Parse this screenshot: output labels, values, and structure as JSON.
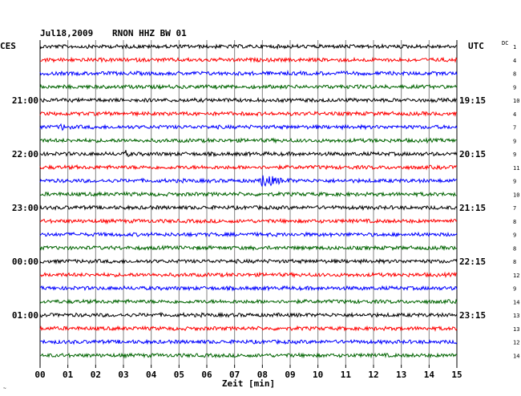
{
  "header": {
    "date": "Jul18,2009",
    "station": "RNON HHZ BW 01",
    "left_tz": "CES",
    "right_tz": "UTC",
    "dc_label": "DC"
  },
  "colors": {
    "trace_cycle": [
      "#000000",
      "#ff0000",
      "#0000ff",
      "#006400"
    ],
    "grid": "#808080",
    "text": "#000000"
  },
  "chart_data": {
    "type": "line",
    "title": "Jul18,2009   RNON HHZ BW 01",
    "xlabel": "Zeit [min]",
    "ylabel": "",
    "xlim": [
      0,
      15
    ],
    "x_ticks": [
      "00",
      "01",
      "02",
      "03",
      "04",
      "05",
      "06",
      "07",
      "08",
      "09",
      "10",
      "11",
      "12",
      "13",
      "14",
      "15"
    ],
    "grid": true,
    "left_time_labels": [
      {
        "row": 4,
        "label": "21:00"
      },
      {
        "row": 8,
        "label": "22:00"
      },
      {
        "row": 12,
        "label": "23:00"
      },
      {
        "row": 16,
        "label": "00:00"
      },
      {
        "row": 20,
        "label": "01:00"
      }
    ],
    "right_time_labels": [
      {
        "row": 4,
        "label": "19:15"
      },
      {
        "row": 8,
        "label": "20:15"
      },
      {
        "row": 12,
        "label": "21:15"
      },
      {
        "row": 16,
        "label": "22:15"
      },
      {
        "row": 20,
        "label": "23:15"
      }
    ],
    "dc_offsets": [
      1,
      4,
      8,
      9,
      10,
      4,
      7,
      9,
      9,
      11,
      9,
      10,
      7,
      8,
      9,
      8,
      8,
      12,
      9,
      14,
      13,
      13,
      12,
      14
    ],
    "events": [
      {
        "row": 6,
        "minute": 0.75,
        "amplitude": "small"
      },
      {
        "row": 8,
        "minute": 3.1,
        "amplitude": "tiny"
      },
      {
        "row": 10,
        "minute": 8.0,
        "amplitude": "large"
      }
    ],
    "rows": 24
  }
}
